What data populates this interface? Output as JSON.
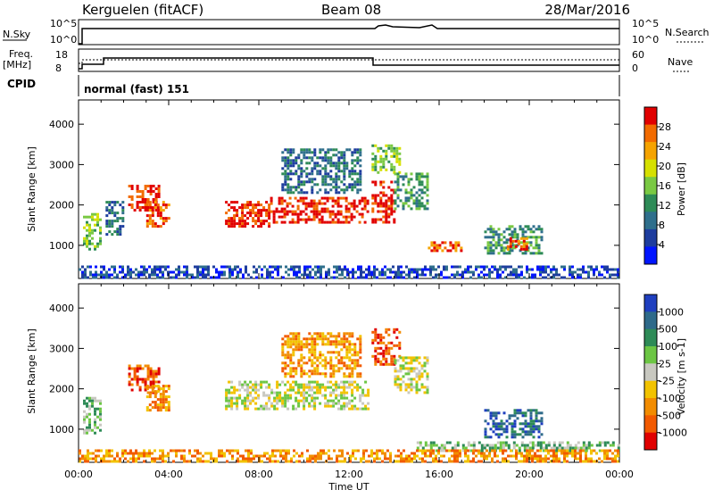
{
  "header": {
    "title": "Kerguelen (fitACF)",
    "beam": "Beam 08",
    "date": "28/Mar/2016"
  },
  "sky_panel": {
    "left_label": "N.Sky",
    "right_label": "N.Search",
    "ticks_left": [
      "10^5",
      "10^0"
    ],
    "ticks_right": [
      "10^5",
      "10^0"
    ]
  },
  "freq_panel": {
    "left_label_top": "Freq.",
    "left_label_unit": "[MHz]",
    "right_label": "Nave",
    "ticks_left": [
      "18",
      "8"
    ],
    "ticks_right": [
      "60",
      "0"
    ]
  },
  "cpid": {
    "label": "CPID",
    "text": "normal (fast) 151"
  },
  "colors": {
    "power_scale": [
      "#0015ff",
      "#1e3d9e",
      "#2f6f8c",
      "#2e8b57",
      "#7ac943",
      "#d6e000",
      "#f5a300",
      "#f26b00",
      "#e10000"
    ],
    "velocity_scale": [
      "#1f3fbf",
      "#2e6a8a",
      "#2e8b57",
      "#6cc644",
      "#c8c8c0",
      "#f2c300",
      "#f28c00",
      "#f25a00",
      "#e00000"
    ]
  },
  "chart_data": [
    {
      "type": "heatmap",
      "name": "power",
      "ylabel": "Slant Range [km]",
      "yticks": [
        "1000",
        "2000",
        "3000",
        "4000"
      ],
      "ylim": [
        180,
        4600
      ],
      "xlim": [
        0,
        24
      ],
      "colorbar": {
        "label": "Power [dB]",
        "ticks": [
          "4",
          "8",
          "12",
          "16",
          "20",
          "24",
          "28"
        ]
      },
      "echo_bands": [
        {
          "t0": 0.2,
          "t1": 1.0,
          "r0": 900,
          "r1": 1800,
          "level": 4
        },
        {
          "t0": 1.2,
          "t1": 2.0,
          "r0": 1300,
          "r1": 2100,
          "level": 2
        },
        {
          "t0": 2.2,
          "t1": 3.6,
          "r0": 1900,
          "r1": 2500,
          "level": 8
        },
        {
          "t0": 3.0,
          "t1": 4.0,
          "r0": 1500,
          "r1": 2100,
          "level": 7
        },
        {
          "t0": 6.5,
          "t1": 8.5,
          "r0": 1500,
          "r1": 2100,
          "level": 8
        },
        {
          "t0": 8.5,
          "t1": 12.8,
          "r0": 1600,
          "r1": 2200,
          "level": 8
        },
        {
          "t0": 9.0,
          "t1": 12.5,
          "r0": 2300,
          "r1": 3400,
          "level": 2
        },
        {
          "t0": 13.0,
          "t1": 14.0,
          "r0": 1600,
          "r1": 2600,
          "level": 8
        },
        {
          "t0": 13.0,
          "t1": 14.2,
          "r0": 2800,
          "r1": 3500,
          "level": 4
        },
        {
          "t0": 14.0,
          "t1": 15.5,
          "r0": 1900,
          "r1": 2800,
          "level": 3
        },
        {
          "t0": 15.5,
          "t1": 17.0,
          "r0": 900,
          "r1": 1100,
          "level": 7
        },
        {
          "t0": 18.0,
          "t1": 20.5,
          "r0": 800,
          "r1": 1500,
          "level": 3
        },
        {
          "t0": 19.0,
          "t1": 20.0,
          "r0": 900,
          "r1": 1200,
          "level": 7
        },
        {
          "t0": 0.0,
          "t1": 24.0,
          "r0": 200,
          "r1": 500,
          "level": 1
        }
      ]
    },
    {
      "type": "heatmap",
      "name": "velocity",
      "ylabel": "Slant Range [km]",
      "xlabel": "Time UT",
      "xticks": [
        "00:00",
        "04:00",
        "08:00",
        "12:00",
        "16:00",
        "20:00",
        "00:00"
      ],
      "yticks": [
        "1000",
        "2000",
        "3000",
        "4000"
      ],
      "ylim": [
        180,
        4600
      ],
      "xlim": [
        0,
        24
      ],
      "colorbar": {
        "label": "Velocity [m s-1]",
        "ticks": [
          "1000",
          "500",
          "100",
          "25",
          "-25",
          "-100",
          "-500",
          "-1000"
        ]
      },
      "echo_bands": [
        {
          "t0": 0.2,
          "t1": 1.0,
          "r0": 900,
          "r1": 1800,
          "level": 3
        },
        {
          "t0": 2.2,
          "t1": 3.6,
          "r0": 1900,
          "r1": 2600,
          "level": 7
        },
        {
          "t0": 3.0,
          "t1": 4.0,
          "r0": 1500,
          "r1": 2100,
          "level": 6
        },
        {
          "t0": 6.5,
          "t1": 12.8,
          "r0": 1500,
          "r1": 2200,
          "level": 4
        },
        {
          "t0": 9.0,
          "t1": 12.5,
          "r0": 2300,
          "r1": 3400,
          "level": 6
        },
        {
          "t0": 13.0,
          "t1": 14.2,
          "r0": 2600,
          "r1": 3500,
          "level": 7
        },
        {
          "t0": 14.0,
          "t1": 15.5,
          "r0": 1900,
          "r1": 2800,
          "level": 4
        },
        {
          "t0": 18.0,
          "t1": 20.5,
          "r0": 800,
          "r1": 1500,
          "level": 1
        },
        {
          "t0": 15.0,
          "t1": 24.0,
          "r0": 500,
          "r1": 700,
          "level": 3
        },
        {
          "t0": 0.0,
          "t1": 24.0,
          "r0": 200,
          "r1": 500,
          "level": 6
        }
      ]
    }
  ]
}
